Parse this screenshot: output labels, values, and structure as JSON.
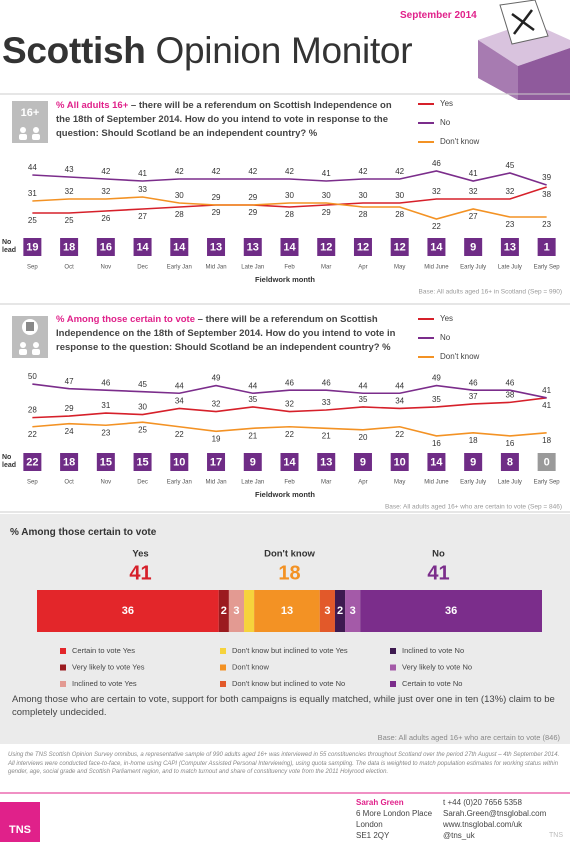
{
  "header": {
    "date": "September 2014",
    "title_bold": "Scottish",
    "title_light": "Opinion Monitor"
  },
  "chart_data": [
    {
      "type": "line",
      "badge": "16+",
      "title_highlight": "% All adults 16+",
      "title": "– there will be a referendum on Scottish Independence on the 18th of September 2014. How do you intend to vote in response to the question: Should Scotland be an independent country? %",
      "categories": [
        "Sep",
        "Oct",
        "Nov",
        "Dec",
        "Early Jan",
        "Mid Jan",
        "Late Jan",
        "Feb",
        "Mar",
        "Apr",
        "May",
        "Mid June",
        "Early July",
        "Late July",
        "Early Sep"
      ],
      "series": [
        {
          "name": "Yes",
          "color": "#d6202a",
          "values": [
            25,
            25,
            26,
            27,
            28,
            29,
            29,
            28,
            29,
            30,
            30,
            32,
            32,
            32,
            38
          ]
        },
        {
          "name": "No",
          "color": "#7b2d8b",
          "values": [
            44,
            43,
            42,
            41,
            42,
            42,
            42,
            42,
            41,
            42,
            42,
            46,
            41,
            45,
            39
          ]
        },
        {
          "name": "Don't know",
          "color": "#f39224",
          "values": [
            31,
            32,
            32,
            33,
            30,
            29,
            29,
            30,
            30,
            28,
            28,
            22,
            27,
            23,
            23
          ]
        }
      ],
      "lead_label": "No lead",
      "leads": [
        19,
        18,
        16,
        14,
        14,
        13,
        13,
        14,
        12,
        12,
        12,
        14,
        9,
        13,
        1
      ],
      "xlabel": "Fieldwork month",
      "base": "Base: All adults aged 16+ in Scotland (Sep = 990)",
      "ylim": [
        18,
        50
      ]
    },
    {
      "type": "line",
      "title_highlight": "% Among those certain to vote",
      "title": "– there will be a referendum on Scottish Independence on the 18th of September 2014. How do you intend to vote in response to the question: Should Scotland be an independent country? %",
      "categories": [
        "Sep",
        "Oct",
        "Nov",
        "Dec",
        "Early Jan",
        "Mid Jan",
        "Late Jan",
        "Feb",
        "Mar",
        "Apr",
        "May",
        "Mid June",
        "Early July",
        "Late July",
        "Early Sep"
      ],
      "series": [
        {
          "name": "Yes",
          "color": "#d6202a",
          "values": [
            28,
            29,
            31,
            30,
            34,
            32,
            35,
            32,
            33,
            35,
            34,
            35,
            37,
            38,
            41
          ]
        },
        {
          "name": "No",
          "color": "#7b2d8b",
          "values": [
            50,
            47,
            46,
            45,
            44,
            49,
            44,
            46,
            46,
            44,
            44,
            49,
            46,
            46,
            41
          ]
        },
        {
          "name": "Don't know",
          "color": "#f39224",
          "values": [
            22,
            24,
            23,
            25,
            22,
            19,
            21,
            22,
            21,
            20,
            22,
            16,
            18,
            16,
            18
          ]
        }
      ],
      "lead_label": "No lead",
      "leads": [
        22,
        18,
        15,
        15,
        10,
        17,
        9,
        14,
        13,
        9,
        10,
        14,
        9,
        8,
        0
      ],
      "xlabel": "Fieldwork month",
      "base": "Base: All adults aged 16+ who are certain to vote (Sep = 846)",
      "ylim": [
        12,
        54
      ]
    },
    {
      "type": "stacked_bar",
      "title": "% Among those certain to vote",
      "xlim": [
        0,
        100
      ],
      "groups": [
        {
          "name": "Yes",
          "value": 41,
          "color": "#d6202a",
          "size": 3
        },
        {
          "name": "Don't know",
          "value": 18,
          "color": "#f39224",
          "size": 3
        },
        {
          "name": "No",
          "value": 41,
          "color": "#7b2d8b",
          "size": 3
        }
      ],
      "series": [
        {
          "name": "Certain to vote Yes",
          "color": "#e3262a",
          "value": 36
        },
        {
          "name": "Very likely to vote Yes",
          "color": "#9b1b1f",
          "value": 2
        },
        {
          "name": "Inclined to vote Yes",
          "color": "#e39a92",
          "value": 3
        },
        {
          "name": "Don't know but inclined to vote Yes",
          "color": "#f6d33c",
          "value": 2,
          "value_label": null
        },
        {
          "name": "Don't know",
          "color": "#f39224",
          "value": 13
        },
        {
          "name": "Don't know but inclined to vote No",
          "color": "#e2592a",
          "value": 3
        },
        {
          "name": "Inclined to vote No",
          "color": "#3e1a50",
          "value": 2
        },
        {
          "name": "Very likely to vote No",
          "color": "#a45aa8",
          "value": 3
        },
        {
          "name": "Certain to vote No",
          "color": "#7b2d8b",
          "value": 36
        }
      ],
      "note": "Among those who are certain to vote, support for both campaigns is equally matched, while just over one in ten (13%) claim to be completely undecided.",
      "base": "Base: All adults aged 16+ who are certain to vote (846)"
    }
  ],
  "footnote": "Using the TNS Scottish Opinion Survey omnibus, a representative sample of 990 adults aged 16+ was interviewed in 55 constituencies throughout Scotland over the period 27th August – 4th September 2014. All interviews were conducted face-to-face, in-home using CAPI (Computer Assisted Personal Interviewing), using quota sampling. The data is weighted to match population estimates for working status within gender, age, social grade and Scottish Parliament region, and to match turnout and share of constituency vote from the 2011 Holyrood election.",
  "footer": {
    "logo": "TNS",
    "name": "Sarah Green",
    "address": [
      "6 More London Place",
      "London",
      "SE1 2QY"
    ],
    "phone": "t +44 (0)20 7656 5358",
    "email": "Sarah.Green@tnsglobal.com",
    "web": "www.tnsglobal.com/uk",
    "twitter": "@tns_uk",
    "watermark": "TNS"
  }
}
